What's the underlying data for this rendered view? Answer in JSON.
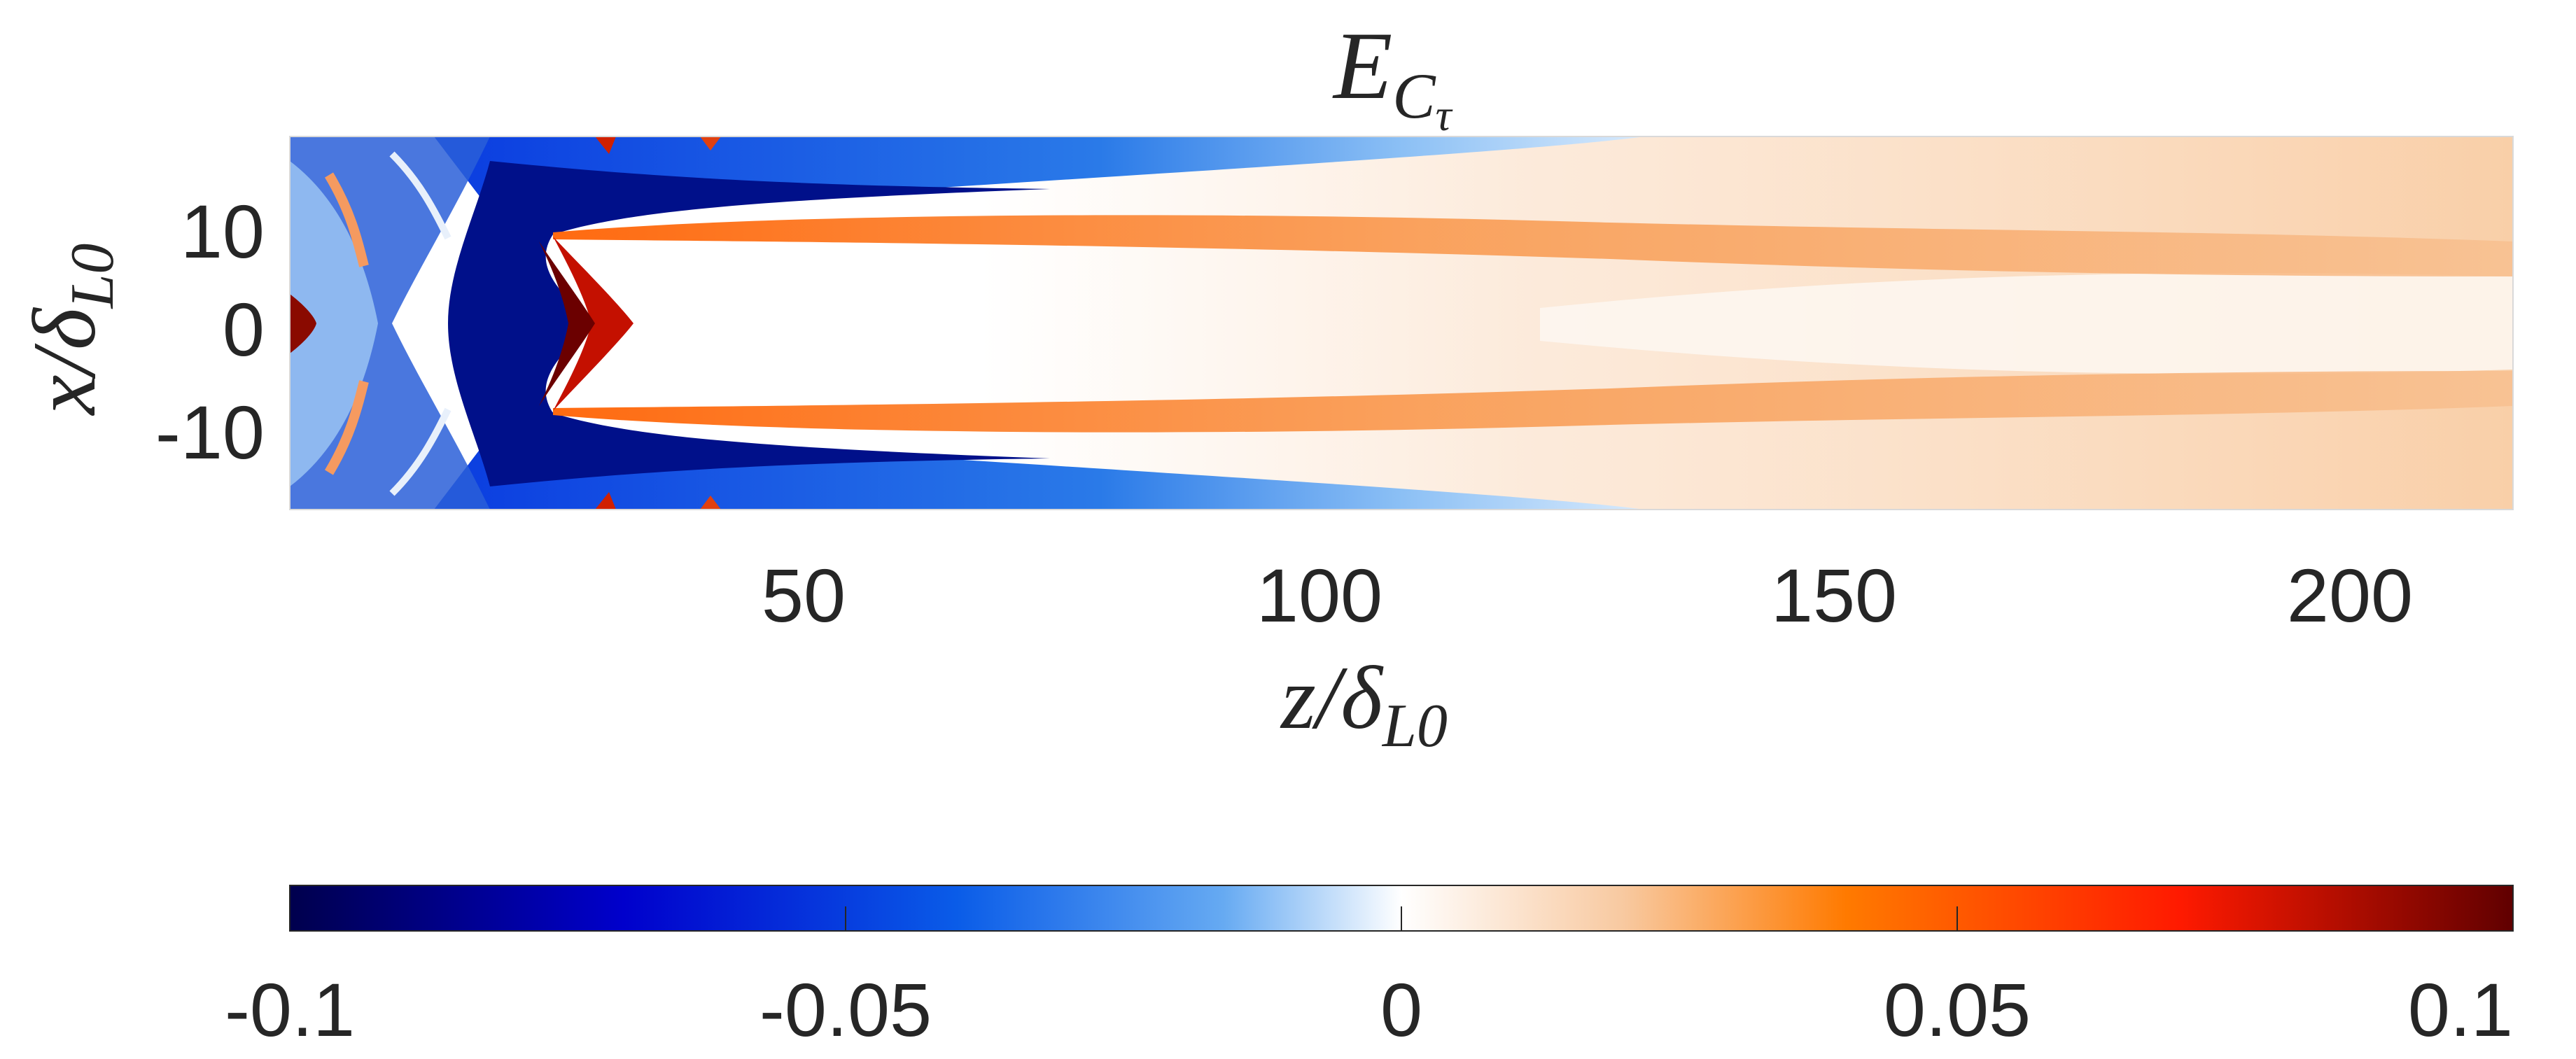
{
  "chart_data": {
    "type": "heatmap",
    "title": {
      "main": "E",
      "sub": "C",
      "subsub": "τ"
    },
    "xlabel": {
      "main": "z/δ",
      "sub": "L0"
    },
    "ylabel": {
      "main": "x/δ",
      "sub": "L0"
    },
    "xlim": [
      0,
      215
    ],
    "ylim": [
      -18,
      18
    ],
    "xticks": [
      50,
      100,
      150,
      200
    ],
    "xtick_labels": [
      "50",
      "100",
      "150",
      "200"
    ],
    "yticks": [
      10,
      0,
      -10
    ],
    "ytick_labels": [
      "10",
      "0",
      "-10"
    ],
    "colorbar": {
      "orientation": "horizontal",
      "placement": "bottom",
      "range": [
        -0.1,
        0.1
      ],
      "ticks": [
        -0.1,
        -0.05,
        0,
        0.05,
        0.1
      ],
      "tick_labels": [
        "-0.1",
        "-0.05",
        "0",
        "0.05",
        "0.1"
      ],
      "colormap": [
        "#00004d",
        "#0000cc",
        "#0a5ce8",
        "#66aaf2",
        "#ffffff",
        "#f8c9a0",
        "#ff7a00",
        "#ff1a00",
        "#600000"
      ]
    },
    "field_structure": {
      "description_values": "diverging field, near zero on centerline, negative (blue) shear-layer bands for z<~120, positive (orange) bands along edges growing downstream, strongly positive near flame tip z~30"
    }
  }
}
